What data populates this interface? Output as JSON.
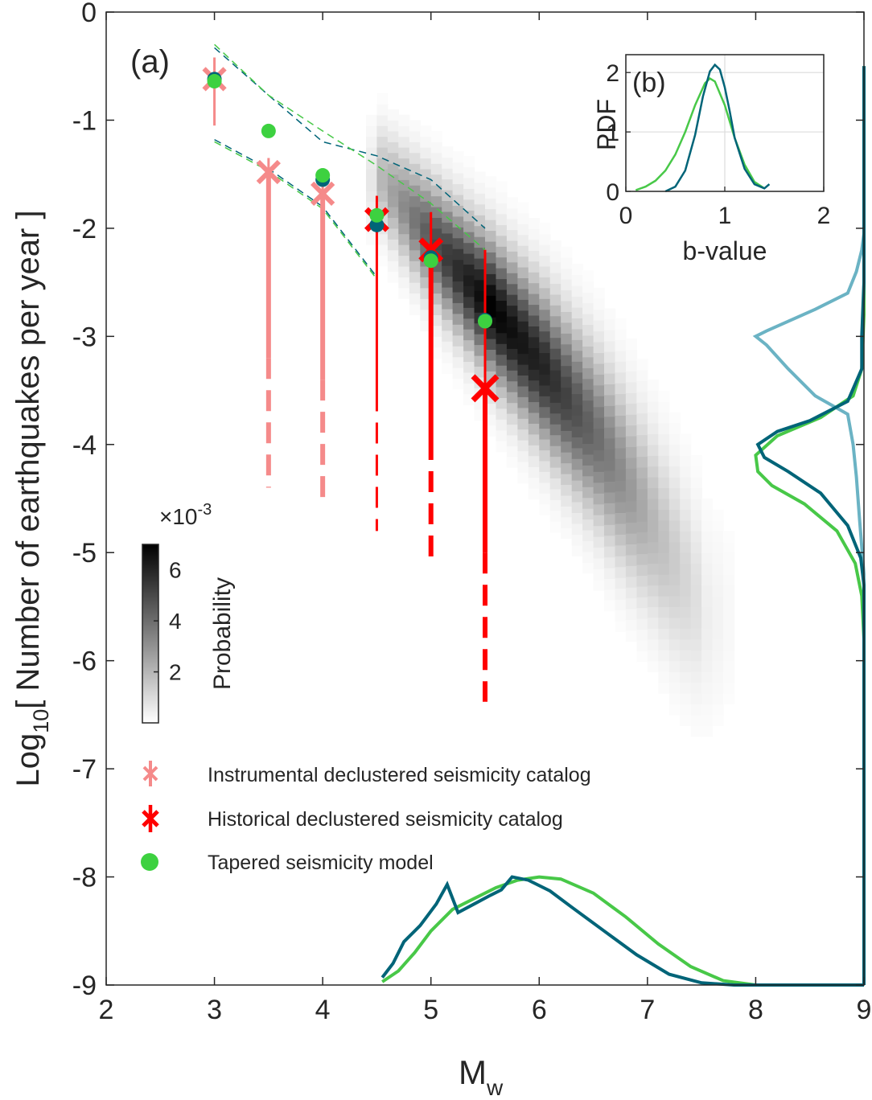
{
  "chart_data": [
    {
      "panel": "main",
      "type": "scatter",
      "label": "(a)",
      "xlabel": "M",
      "xlabel_sub": "w",
      "ylabel_pre": "Log",
      "ylabel_sub": "10",
      "ylabel_post": "[ Number of earthquakes per year ]",
      "xlim": [
        2,
        9
      ],
      "ylim": [
        -9,
        0
      ],
      "xticks": [
        "2",
        "3",
        "4",
        "5",
        "6",
        "7",
        "8",
        "9"
      ],
      "yticks": [
        "0",
        "-1",
        "-2",
        "-3",
        "-4",
        "-5",
        "-6",
        "-7",
        "-8",
        "-9"
      ],
      "colorbar": {
        "label": "Probability",
        "exponent_base": "×10",
        "exponent": "-3",
        "ticks": [
          "2",
          "4",
          "6"
        ],
        "range": [
          0,
          7
        ]
      },
      "legend": {
        "instrumental": "Instrumental declustered seismicity catalog",
        "historical": "Historical declustered seismicity catalog",
        "tapered": "Tapered seismicity model"
      },
      "colors": {
        "instrumental": "#f58a8a",
        "historical": "#ff0000",
        "tapered": "#3dd140",
        "dark_teal": "#006478",
        "light_teal": "#6bb3c4",
        "green_line": "#48c848"
      },
      "instrumental": [
        {
          "x": 3.0,
          "y": -0.62,
          "lo": -1.05,
          "hi": -0.42,
          "solid_to": -1.05,
          "dash_to": null
        },
        {
          "x": 3.5,
          "y": -1.48,
          "lo": -4.4,
          "hi": -1.35,
          "solid_to": -3.2,
          "dash_to": -4.4
        },
        {
          "x": 4.0,
          "y": -1.68,
          "lo": -4.58,
          "hi": -1.5,
          "solid_to": -3.4,
          "dash_to": -4.58
        }
      ],
      "historical": [
        {
          "x": 4.5,
          "y": -1.92,
          "lo": -4.8,
          "hi": -1.7,
          "solid_to": -3.5,
          "dash_to": -4.8
        },
        {
          "x": 5.0,
          "y": -2.2,
          "lo": -5.12,
          "hi": -1.85,
          "solid_to": -3.95,
          "dash_to": -5.12
        },
        {
          "x": 5.5,
          "y": -3.48,
          "lo": -6.38,
          "hi": -2.2,
          "solid_to": -5.0,
          "dash_to": -6.38
        }
      ],
      "tapered": [
        {
          "x": 3.0,
          "y": -0.64
        },
        {
          "x": 3.5,
          "y": -1.1
        },
        {
          "x": 4.0,
          "y": -1.51
        },
        {
          "x": 4.5,
          "y": -1.88
        },
        {
          "x": 5.0,
          "y": -2.3
        },
        {
          "x": 5.5,
          "y": -2.86
        }
      ],
      "teal_points": [
        {
          "x": 3.0,
          "y": -0.62
        },
        {
          "x": 4.0,
          "y": -1.55
        },
        {
          "x": 4.5,
          "y": -1.97
        },
        {
          "x": 5.0,
          "y": -2.27
        },
        {
          "x": 5.5,
          "y": -2.85
        }
      ],
      "envelope_upper_blue": {
        "x": [
          3.0,
          3.5,
          4.0,
          4.5,
          5.0,
          5.5
        ],
        "y": [
          -0.33,
          -0.77,
          -1.2,
          -1.33,
          -1.55,
          -2.0
        ]
      },
      "envelope_upper_green": {
        "x": [
          3.0,
          3.5,
          4.0,
          4.5,
          5.0,
          5.5
        ],
        "y": [
          -0.3,
          -0.77,
          -1.1,
          -1.42,
          -1.77,
          -2.2
        ]
      },
      "envelope_lower": {
        "x": [
          3.0,
          3.5,
          4.0,
          4.5
        ],
        "y": [
          -1.18,
          -1.45,
          -1.8,
          -2.45
        ]
      },
      "density_ridge": {
        "x": [
          4.5,
          5.0,
          5.5,
          6.0,
          6.5,
          7.0,
          7.5
        ],
        "y": [
          -1.55,
          -2.15,
          -2.72,
          -3.3,
          -3.95,
          -4.75,
          -5.6
        ],
        "width": [
          0.3,
          0.35,
          0.4,
          0.45,
          0.5,
          0.55,
          0.6
        ],
        "peak": [
          2.0,
          5.0,
          7.0,
          6.0,
          4.0,
          2.0,
          0.6
        ]
      },
      "marginal_x": {
        "dark": {
          "x": [
            4.55,
            4.65,
            4.75,
            4.9,
            5.05,
            5.15,
            5.25,
            5.4,
            5.55,
            5.65,
            5.75,
            5.9,
            6.1,
            6.3,
            6.6,
            6.9,
            7.2,
            7.5,
            7.8,
            8.2,
            8.6,
            9.0
          ],
          "y": [
            -8.93,
            -8.8,
            -8.6,
            -8.45,
            -8.25,
            -8.07,
            -8.33,
            -8.25,
            -8.17,
            -8.12,
            -8.0,
            -8.03,
            -8.13,
            -8.28,
            -8.5,
            -8.72,
            -8.9,
            -8.98,
            -9.0,
            -9.0,
            -9.0,
            -9.0
          ]
        },
        "green": {
          "x": [
            4.55,
            4.7,
            4.85,
            5.0,
            5.2,
            5.4,
            5.6,
            5.8,
            6.0,
            6.2,
            6.5,
            6.8,
            7.1,
            7.4,
            7.7,
            8.0,
            8.5,
            9.0
          ],
          "y": [
            -8.97,
            -8.87,
            -8.7,
            -8.5,
            -8.3,
            -8.2,
            -8.1,
            -8.03,
            -8.0,
            -8.02,
            -8.15,
            -8.37,
            -8.62,
            -8.83,
            -8.96,
            -9.0,
            -9.0,
            -9.0
          ]
        }
      },
      "marginal_y": {
        "light": {
          "x": [
            9.0,
            8.98,
            8.93,
            8.85,
            8.55,
            8.1,
            8.0,
            8.1,
            8.3,
            8.55,
            8.85,
            8.9,
            8.93,
            8.96,
            9.0,
            9.0
          ],
          "y": [
            -2.05,
            -2.2,
            -2.4,
            -2.6,
            -2.75,
            -2.95,
            -3.0,
            -3.08,
            -3.3,
            -3.55,
            -3.72,
            -4.0,
            -4.3,
            -4.7,
            -5.2,
            -9.0
          ]
        },
        "dark": {
          "x": [
            9.0,
            9.0,
            8.98,
            8.98,
            8.85,
            8.5,
            8.2,
            8.02,
            8.08,
            8.3,
            8.6,
            8.85,
            8.97,
            9.0,
            9.0,
            9.0
          ],
          "y": [
            -0.5,
            -2.5,
            -3.0,
            -3.3,
            -3.6,
            -3.78,
            -3.88,
            -4.0,
            -4.12,
            -4.25,
            -4.45,
            -4.75,
            -5.05,
            -5.3,
            -6.0,
            -9.0
          ]
        },
        "green": {
          "x": [
            9.0,
            9.0,
            8.98,
            8.9,
            8.6,
            8.2,
            8.0,
            8.02,
            8.15,
            8.45,
            8.75,
            8.92,
            8.98,
            9.0,
            9.0,
            9.0
          ],
          "y": [
            -0.5,
            -2.8,
            -3.3,
            -3.55,
            -3.75,
            -3.92,
            -4.1,
            -4.25,
            -4.38,
            -4.55,
            -4.8,
            -5.1,
            -5.4,
            -5.8,
            -6.5,
            -9.0
          ]
        }
      }
    },
    {
      "panel": "inset",
      "type": "line",
      "label": "(b)",
      "xlabel": "b-value",
      "ylabel": "PDF",
      "xlim": [
        0,
        2
      ],
      "ylim": [
        0,
        2.3
      ],
      "xticks": [
        "0",
        "1",
        "2"
      ],
      "yticks": [
        "0",
        "1",
        "2"
      ],
      "grid": true,
      "series": [
        {
          "name": "dark",
          "x": [
            0.4,
            0.5,
            0.6,
            0.7,
            0.78,
            0.85,
            0.9,
            0.95,
            1.0,
            1.05,
            1.1,
            1.2,
            1.3,
            1.4,
            1.45
          ],
          "y": [
            0.0,
            0.08,
            0.35,
            0.95,
            1.6,
            2.02,
            2.13,
            2.05,
            1.75,
            1.35,
            0.9,
            0.38,
            0.12,
            0.05,
            0.12
          ]
        },
        {
          "name": "green",
          "x": [
            0.1,
            0.2,
            0.3,
            0.4,
            0.5,
            0.6,
            0.7,
            0.8,
            0.85,
            0.9,
            1.0,
            1.1,
            1.2,
            1.3,
            1.4
          ],
          "y": [
            0.02,
            0.08,
            0.18,
            0.35,
            0.62,
            1.0,
            1.45,
            1.82,
            1.9,
            1.85,
            1.45,
            0.9,
            0.45,
            0.16,
            0.05
          ]
        }
      ]
    }
  ]
}
